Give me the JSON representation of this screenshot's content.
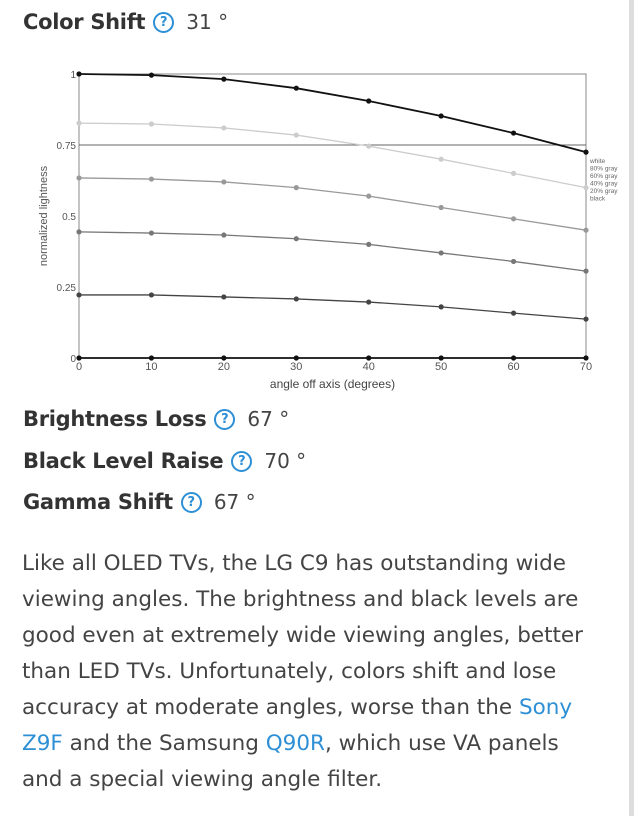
{
  "metrics": [
    {
      "label": "Color Shift",
      "value": "31 °"
    },
    {
      "label": "Brightness Loss",
      "value": "67 °"
    },
    {
      "label": "Black Level Raise",
      "value": "70 °"
    },
    {
      "label": "Gamma Shift",
      "value": "67 °"
    }
  ],
  "help_icon": "?",
  "description": {
    "part1": "Like all OLED TVs, the LG C9 has outstanding wide viewing angles. The brightness and black levels are good even at extremely wide viewing angles, better than LED TVs. Unfortunately, colors shift and lose accuracy at moderate angles, worse than the ",
    "link1": "Sony Z9F",
    "part2": " and the Samsung ",
    "link2": "Q90R",
    "part3": ", which use VA panels and a special viewing angle filter."
  },
  "chart_data": {
    "type": "line",
    "xlabel": "angle off axis (degrees)",
    "ylabel": "normalized lightness",
    "x": [
      0,
      10,
      20,
      30,
      40,
      50,
      60,
      70
    ],
    "xticks": [
      "0",
      "10",
      "20",
      "30",
      "40",
      "50",
      "60",
      "70"
    ],
    "yticks": [
      "0",
      "0.25",
      "0.5",
      "0.75",
      "1"
    ],
    "xlim": [
      0,
      70
    ],
    "ylim": [
      0,
      1
    ],
    "legend_position": "right",
    "series": [
      {
        "name": "white",
        "color": "#111111",
        "values": [
          1,
          0.996,
          0.982,
          0.95,
          0.905,
          0.852,
          0.792,
          0.725
        ]
      },
      {
        "name": "80% gray",
        "color": "#cccccc",
        "values": [
          0.827,
          0.824,
          0.81,
          0.785,
          0.746,
          0.7,
          0.65,
          0.6
        ]
      },
      {
        "name": "60% gray",
        "color": "#999999",
        "values": [
          0.634,
          0.63,
          0.62,
          0.6,
          0.57,
          0.53,
          0.49,
          0.45
        ]
      },
      {
        "name": "40% gray",
        "color": "#777777",
        "values": [
          0.444,
          0.44,
          0.433,
          0.42,
          0.4,
          0.37,
          0.34,
          0.306
        ]
      },
      {
        "name": "20% gray",
        "color": "#444444",
        "values": [
          0.222,
          0.222,
          0.215,
          0.208,
          0.197,
          0.18,
          0.158,
          0.137
        ]
      },
      {
        "name": "black",
        "color": "#111111",
        "values": [
          0,
          0,
          0,
          0,
          0,
          0,
          0,
          0
        ]
      }
    ]
  }
}
